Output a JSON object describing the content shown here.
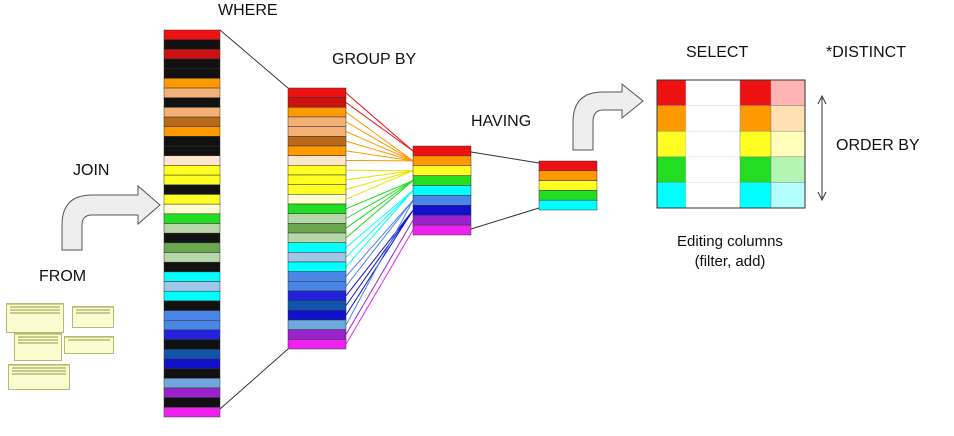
{
  "labels": {
    "where": "WHERE",
    "group_by": "GROUP BY",
    "having": "HAVING",
    "select": "SELECT",
    "distinct": "*DISTINCT",
    "join": "JOIN",
    "from": "FROM",
    "order_by": "ORDER BY",
    "editing_line1": "Editing columns",
    "editing_line2": "(filter, add)"
  },
  "where_rows": [
    "#ee1111",
    "#111111",
    "#cc1111",
    "#111111",
    "#111111",
    "#ff9900",
    "#f5b077",
    "#111111",
    "#f5b077",
    "#b86a1a",
    "#ff9900",
    "#111111",
    "#111111",
    "#fde6cc",
    "#ffff22",
    "#ffff22",
    "#111111",
    "#ffff22",
    "#ffffcc",
    "#22dd22",
    "#b6d7a8",
    "#111111",
    "#6aa84f",
    "#b6d7a8",
    "#111111",
    "#00ffff",
    "#9fc5e8",
    "#00ffff",
    "#111111",
    "#4a86e8",
    "#4a86e8",
    "#2222dd",
    "#111111",
    "#1155aa",
    "#1111cc",
    "#111111",
    "#6fa8dc",
    "#9922cc",
    "#111111",
    "#ee22ee"
  ],
  "group_rows": [
    "#ee1111",
    "#cc1111",
    "#ff9900",
    "#f5b077",
    "#f5b077",
    "#b86a1a",
    "#ff9900",
    "#fde6cc",
    "#ffff22",
    "#ffff22",
    "#ffff22",
    "#ffffcc",
    "#22dd22",
    "#b6d7a8",
    "#6aa84f",
    "#b6d7a8",
    "#00ffff",
    "#9fc5e8",
    "#00ffff",
    "#4a86e8",
    "#4a86e8",
    "#2222dd",
    "#1155aa",
    "#1111cc",
    "#6fa8dc",
    "#9922cc",
    "#ee22ee"
  ],
  "having_in_rows": [
    "#ee1111",
    "#ff9900",
    "#ffff22",
    "#22dd22",
    "#00ffff",
    "#4a86e8",
    "#1111cc",
    "#9922cc",
    "#ee22ee"
  ],
  "having_out_rows": [
    "#ee1111",
    "#ff9900",
    "#ffff22",
    "#22dd22",
    "#00ffff"
  ],
  "select_table": [
    [
      "#ee1111",
      "#ffffff",
      "#ee1111",
      "#ffb3b3"
    ],
    [
      "#ff9900",
      "#ffffff",
      "#ff9900",
      "#ffe0b3"
    ],
    [
      "#ffff22",
      "#ffffff",
      "#ffff22",
      "#ffffbb"
    ],
    [
      "#22dd22",
      "#ffffff",
      "#22dd22",
      "#b3f5b3"
    ],
    [
      "#00ffff",
      "#ffffff",
      "#00ffff",
      "#b3ffff"
    ]
  ],
  "mini_schema": {
    "tables": [
      "",
      "",
      "",
      "",
      ""
    ]
  }
}
